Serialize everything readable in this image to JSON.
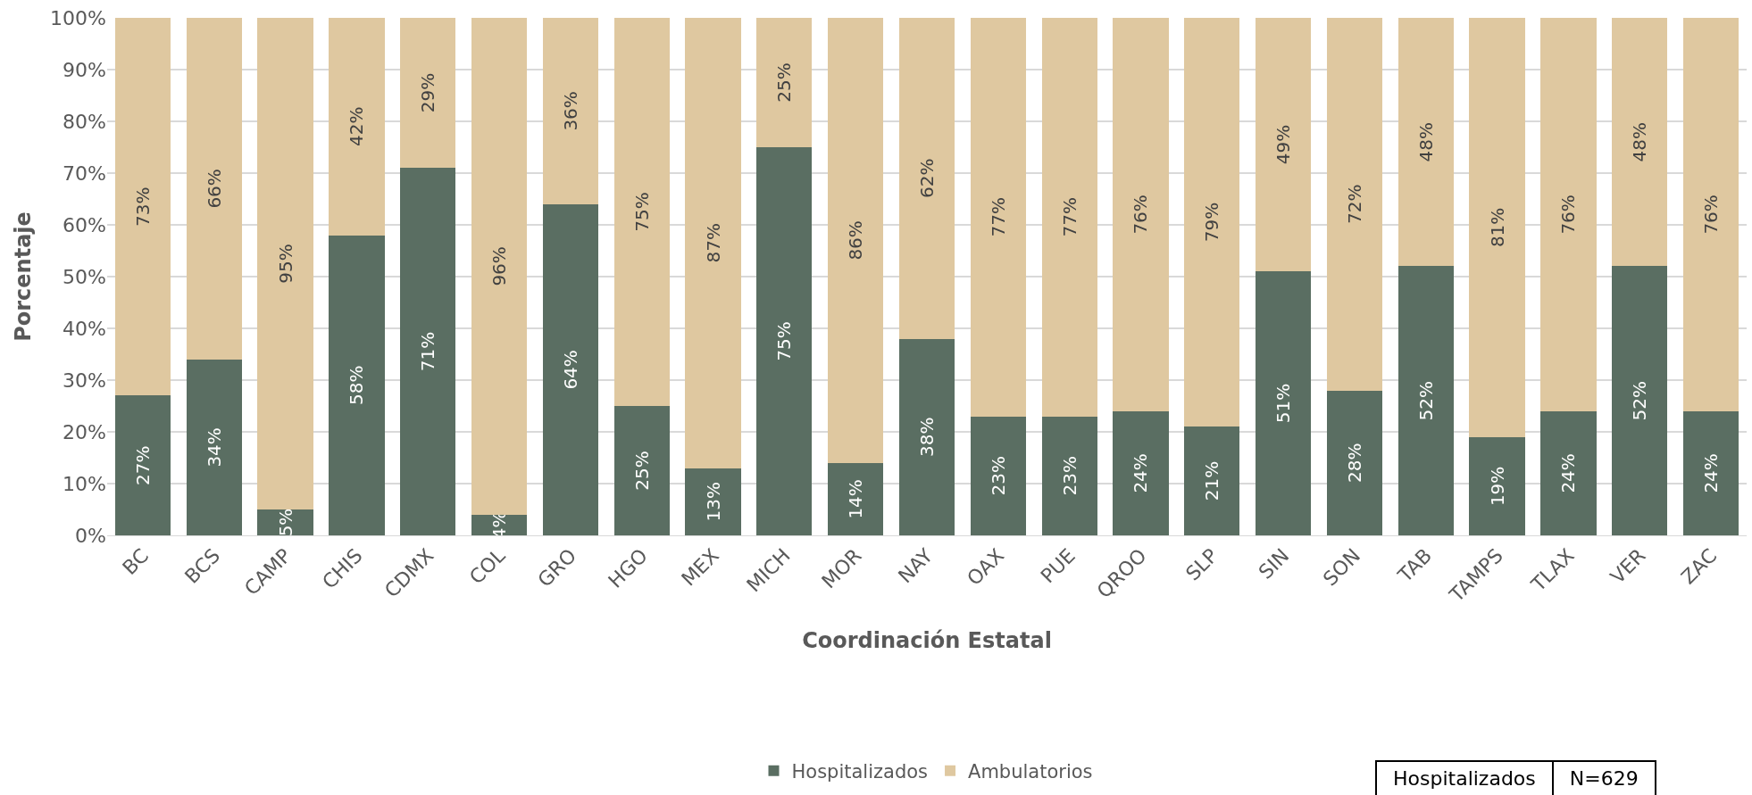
{
  "chart_data": {
    "type": "bar",
    "stacked": true,
    "xlabel": "Coordinación Estatal",
    "ylabel": "Porcentaje",
    "categories": [
      "BC",
      "BCS",
      "CAMP",
      "CHIS",
      "CDMX",
      "COL",
      "GRO",
      "HGO",
      "MEX",
      "MICH",
      "MOR",
      "NAY",
      "OAX",
      "PUE",
      "QROO",
      "SLP",
      "SIN",
      "SON",
      "TAB",
      "TAMPS",
      "TLAX",
      "VER",
      "ZAC"
    ],
    "series": [
      {
        "name": "Hospitalizados",
        "color": "#5a6e62",
        "values": [
          27,
          34,
          5,
          58,
          71,
          4,
          64,
          25,
          13,
          75,
          14,
          38,
          23,
          23,
          24,
          21,
          51,
          28,
          52,
          19,
          24,
          52,
          24
        ],
        "value_labels": [
          "27%",
          "34%",
          "5%",
          "58%",
          "71%",
          "4%",
          "64%",
          "25%",
          "13%",
          "75%",
          "14%",
          "38%",
          "23%",
          "23%",
          "24%",
          "21%",
          "51%",
          "28%",
          "52%",
          "19%",
          "24%",
          "52%",
          "24%"
        ]
      },
      {
        "name": "Ambulatorios",
        "color": "#dfc8a0",
        "values": [
          73,
          66,
          95,
          42,
          29,
          96,
          36,
          75,
          87,
          25,
          86,
          62,
          77,
          77,
          76,
          79,
          49,
          72,
          48,
          81,
          76,
          48,
          76
        ],
        "value_labels": [
          "73%",
          "66%",
          "95%",
          "42%",
          "29%",
          "96%",
          "36%",
          "75%",
          "87%",
          "25%",
          "86%",
          "62%",
          "77%",
          "77%",
          "76%",
          "79%",
          "49%",
          "72%",
          "48%",
          "81%",
          "76%",
          "48%",
          "76%"
        ]
      }
    ],
    "ylim": [
      0,
      100
    ],
    "yticks": [
      {
        "value": 0,
        "label": "0%"
      },
      {
        "value": 10,
        "label": "10%"
      },
      {
        "value": 20,
        "label": "20%"
      },
      {
        "value": 30,
        "label": "30%"
      },
      {
        "value": 40,
        "label": "40%"
      },
      {
        "value": 50,
        "label": "50%"
      },
      {
        "value": 60,
        "label": "60%"
      },
      {
        "value": 70,
        "label": "70%"
      },
      {
        "value": 80,
        "label": "80%"
      },
      {
        "value": 90,
        "label": "90%"
      },
      {
        "value": 100,
        "label": "100%"
      }
    ],
    "grid": "y",
    "legend": "bottom",
    "annotations": [
      "Hospitalizados",
      "N=629"
    ]
  }
}
